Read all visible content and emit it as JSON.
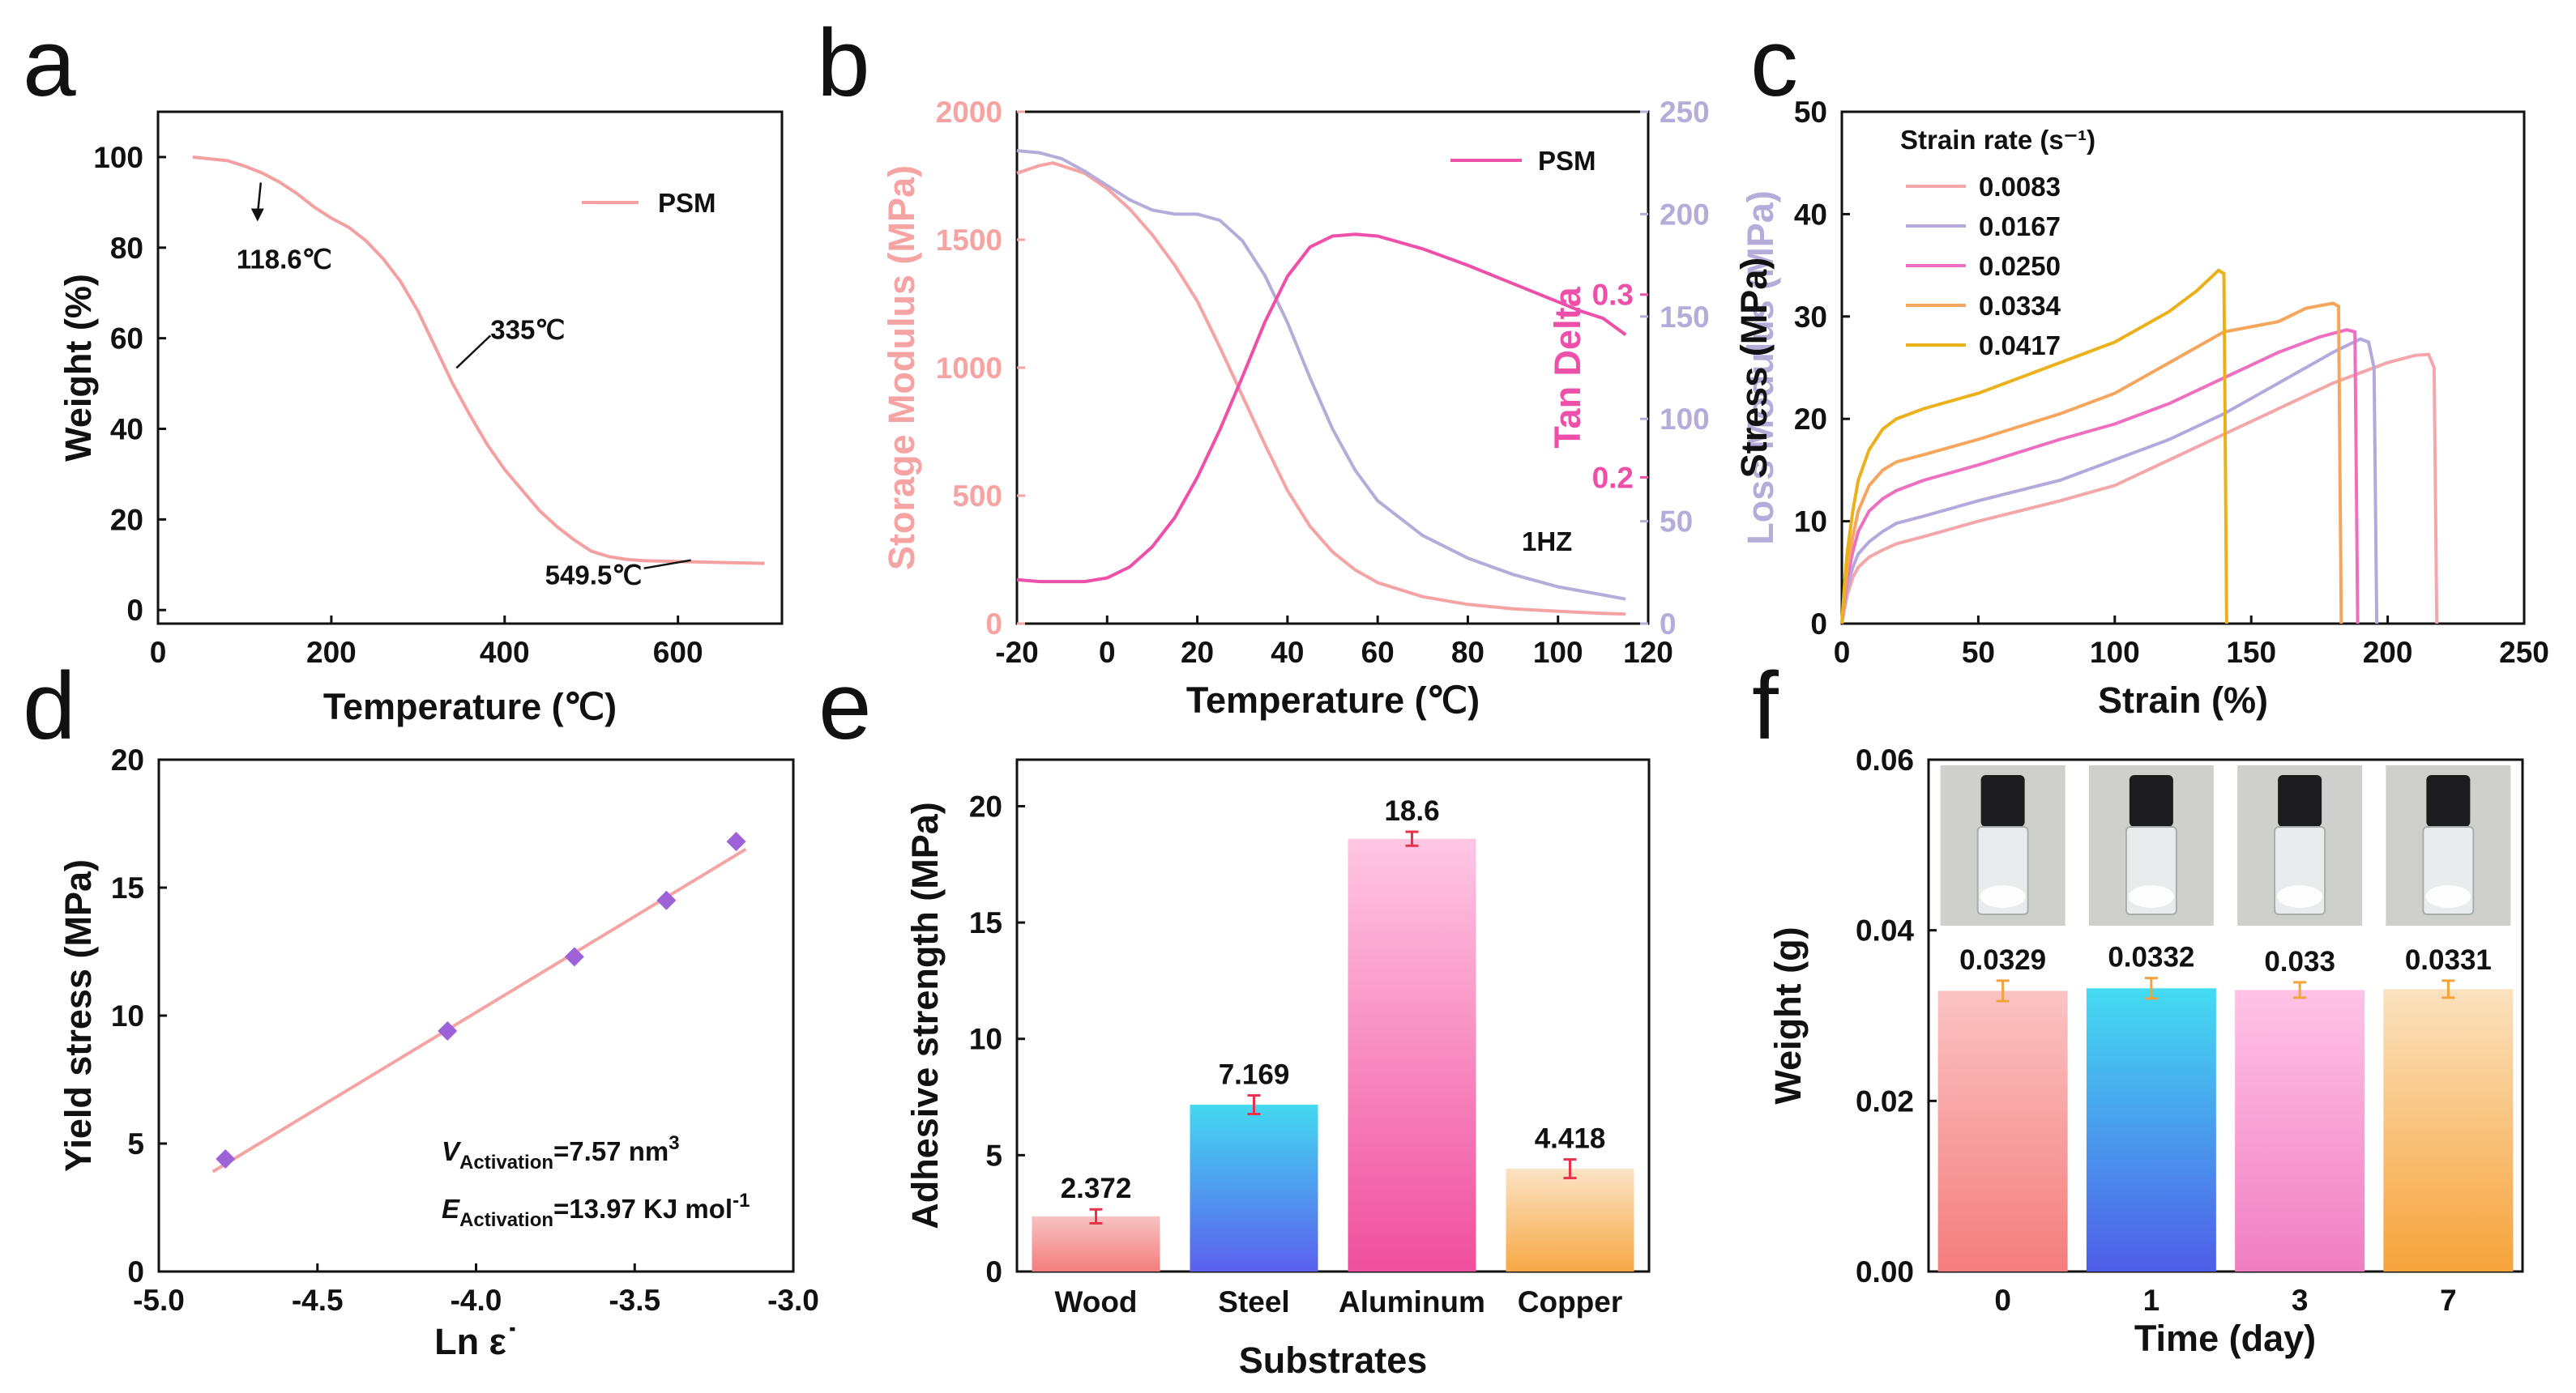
{
  "colors": {
    "tga": "#f4a0a0",
    "storage": "#f6a3a3",
    "tand": "#ee4fa9",
    "loss": "#b6acd9",
    "sr1": "#f4a7aa",
    "sr2": "#b4a8dd",
    "sr3": "#ee6fbf",
    "sr4": "#f5a65c",
    "sr5": "#eab11a",
    "fit": "#f6a3a3",
    "marker": "#9e62d8",
    "errorbar": "#e8324c",
    "errorbar_f": "#f2a43b",
    "grad_wood": [
      "#f7c2c2",
      "#f47d7d"
    ],
    "grad_steel": [
      "#43d9f0",
      "#5b60ee"
    ],
    "grad_aluminum": [
      "#ffc7e3",
      "#f04f9e"
    ],
    "grad_copper": [
      "#fbe3c4",
      "#f7a845"
    ],
    "grad_f0": [
      "#fbc3c3",
      "#f47d7d"
    ],
    "grad_f1": [
      "#44dcf2",
      "#4f5de8"
    ],
    "grad_f3": [
      "#ffc3e6",
      "#f07ec1"
    ],
    "grad_f7": [
      "#fbe2bf",
      "#f6a33a"
    ]
  },
  "panels": {
    "a": {
      "label": "a",
      "chart_data": {
        "type": "line",
        "xlabel": "Temperature (℃)",
        "ylabel": "Weight (%)",
        "xlim": [
          0,
          720
        ],
        "ylim": [
          -3,
          110
        ],
        "xticks": [
          0,
          200,
          400,
          600
        ],
        "yticks": [
          0,
          20,
          40,
          60,
          80,
          100
        ],
        "legend": "PSM",
        "legend_position": "top-right",
        "series": [
          {
            "name": "PSM",
            "x": [
              40,
              80,
              100,
              120,
              140,
              160,
              180,
              200,
              220,
              240,
              260,
              280,
              300,
              320,
              340,
              360,
              380,
              400,
              420,
              440,
              460,
              480,
              500,
              520,
              540,
              560,
              600,
              650,
              700
            ],
            "y": [
              100,
              99.2,
              98,
              96.5,
              94.5,
              92,
              89,
              86.5,
              84.5,
              81.5,
              77.5,
              72.5,
              66,
              58,
              50,
              43,
              36.5,
              31,
              26.5,
              22,
              18.5,
              15.5,
              13,
              11.8,
              11.2,
              10.9,
              10.7,
              10.5,
              10.3
            ]
          }
        ],
        "annotations": [
          {
            "text": "118.6℃",
            "x": 118.6,
            "y": 96.5
          },
          {
            "text": "335℃",
            "x": 335,
            "y": 52
          },
          {
            "text": "549.5℃",
            "x": 549.5,
            "y": 11
          }
        ]
      }
    },
    "b": {
      "label": "b",
      "chart_data": {
        "type": "line",
        "xlabel": "Temperature (℃)",
        "xlim": [
          -20,
          120
        ],
        "xticks": [
          -20,
          0,
          20,
          40,
          60,
          80,
          100,
          120
        ],
        "left_axis": {
          "label": "Storage Modulus (MPa)",
          "lim": [
            0,
            2000
          ],
          "ticks": [
            0,
            500,
            1000,
            1500,
            2000
          ]
        },
        "right_axis1": {
          "label": "Loss Modulus (MPa)",
          "lim": [
            0,
            250
          ],
          "ticks": [
            0,
            50,
            100,
            150,
            200,
            250
          ]
        },
        "inner_axis": {
          "label": "Tan Delta",
          "lim": [
            0.12,
            0.4
          ],
          "ticks": [
            0.2,
            0.3
          ],
          "tick_labels": [
            "0.2",
            "0.3"
          ]
        },
        "legend": "PSM",
        "legend_position": "top-right",
        "annotation": "1HZ",
        "series": [
          {
            "name": "Storage Modulus",
            "x": [
              -20,
              -15,
              -12,
              -5,
              0,
              5,
              10,
              15,
              20,
              25,
              30,
              35,
              40,
              45,
              50,
              55,
              60,
              70,
              80,
              90,
              100,
              110,
              115
            ],
            "y": [
              1760,
              1790,
              1800,
              1760,
              1700,
              1620,
              1520,
              1400,
              1260,
              1080,
              890,
              700,
              520,
              380,
              280,
              210,
              160,
              105,
              75,
              58,
              48,
              40,
              37
            ]
          },
          {
            "name": "Loss Modulus",
            "x": [
              -20,
              -15,
              -10,
              -5,
              0,
              5,
              10,
              15,
              20,
              25,
              30,
              35,
              40,
              45,
              50,
              55,
              60,
              70,
              80,
              90,
              100,
              110,
              115
            ],
            "y": [
              231,
              230,
              227,
              221,
              214,
              207,
              202,
              200,
              200,
              197,
              187,
              170,
              147,
              120,
              95,
              75,
              60,
              43,
              32,
              24,
              18,
              14,
              12
            ]
          },
          {
            "name": "Tan Delta",
            "x": [
              -20,
              -15,
              -10,
              -5,
              0,
              5,
              10,
              15,
              20,
              25,
              30,
              35,
              40,
              45,
              50,
              55,
              60,
              70,
              80,
              90,
              100,
              105,
              110,
              115
            ],
            "y": [
              0.144,
              0.143,
              0.143,
              0.143,
              0.145,
              0.151,
              0.162,
              0.178,
              0.2,
              0.226,
              0.255,
              0.285,
              0.31,
              0.326,
              0.332,
              0.333,
              0.332,
              0.325,
              0.316,
              0.306,
              0.296,
              0.291,
              0.287,
              0.278
            ]
          }
        ]
      }
    },
    "c": {
      "label": "c",
      "chart_data": {
        "type": "line",
        "xlabel": "Strain (%)",
        "ylabel": "Stress (MPa)",
        "xlim": [
          0,
          250
        ],
        "ylim": [
          0,
          50
        ],
        "xticks": [
          0,
          50,
          100,
          150,
          200,
          250
        ],
        "yticks": [
          0,
          10,
          20,
          30,
          40,
          50
        ],
        "legend_title": "Strain rate (s⁻¹)",
        "legend_position": "top-left",
        "series": [
          {
            "name": "0.0083",
            "x": [
              0,
              1,
              2,
              4,
              6,
              10,
              15,
              20,
              30,
              50,
              80,
              100,
              120,
              140,
              160,
              180,
              200,
              210,
              215,
              217,
              218
            ],
            "y": [
              0,
              1.5,
              2.8,
              4.5,
              5.5,
              6.5,
              7.2,
              7.8,
              8.5,
              10,
              12,
              13.5,
              16,
              18.5,
              21,
              23.5,
              25.5,
              26.2,
              26.3,
              25,
              0
            ]
          },
          {
            "name": "0.0167",
            "x": [
              0,
              1,
              2,
              4,
              6,
              10,
              15,
              20,
              30,
              50,
              80,
              100,
              120,
              140,
              160,
              180,
              190,
              193,
              195,
              196
            ],
            "y": [
              0,
              2,
              3.5,
              5.5,
              6.8,
              8,
              9,
              9.8,
              10.5,
              12,
              14,
              16,
              18,
              20.5,
              23.5,
              26.5,
              27.8,
              27.5,
              25,
              0
            ]
          },
          {
            "name": "0.0250",
            "x": [
              0,
              1,
              2,
              4,
              6,
              10,
              15,
              20,
              30,
              50,
              80,
              100,
              120,
              140,
              160,
              175,
              185,
              188,
              189
            ],
            "y": [
              0,
              2.5,
              4.5,
              7,
              9,
              11,
              12.2,
              13,
              14,
              15.5,
              18,
              19.5,
              21.5,
              24,
              26.5,
              28,
              28.7,
              28.5,
              0
            ]
          },
          {
            "name": "0.0334",
            "x": [
              0,
              1,
              2,
              4,
              6,
              10,
              15,
              20,
              30,
              50,
              80,
              100,
              120,
              140,
              160,
              170,
              180,
              182,
              183
            ],
            "y": [
              0,
              3,
              5.5,
              8.5,
              11,
              13.5,
              15,
              15.8,
              16.5,
              18,
              20.5,
              22.5,
              25.5,
              28.5,
              29.5,
              30.8,
              31.3,
              31,
              0
            ]
          },
          {
            "name": "0.0417",
            "x": [
              0,
              1,
              2,
              4,
              6,
              10,
              15,
              20,
              30,
              50,
              80,
              100,
              120,
              130,
              138,
              140,
              141
            ],
            "y": [
              0,
              4,
              7,
              11,
              14,
              17,
              19,
              20,
              21,
              22.5,
              25.5,
              27.5,
              30.5,
              32.5,
              34.5,
              34.2,
              0
            ]
          }
        ]
      }
    },
    "d": {
      "label": "d",
      "chart_data": {
        "type": "scatter",
        "xlabel": "Ln ε˙",
        "ylabel": "Yield stress (MPa)",
        "xlim": [
          -5.0,
          -3.0
        ],
        "ylim": [
          0,
          20
        ],
        "xticks": [
          -5.0,
          -4.5,
          -4.0,
          -3.5,
          -3.0
        ],
        "xtick_labels": [
          "-5.0",
          "-4.5",
          "-4.0",
          "-3.5",
          "-3.0"
        ],
        "yticks": [
          0,
          5,
          10,
          15,
          20
        ],
        "points": [
          {
            "x": -4.79,
            "y": 4.4
          },
          {
            "x": -4.09,
            "y": 9.4
          },
          {
            "x": -3.69,
            "y": 12.3
          },
          {
            "x": -3.4,
            "y": 14.5
          },
          {
            "x": -3.18,
            "y": 16.8
          }
        ],
        "fit": {
          "x": [
            -4.83,
            -3.15
          ],
          "y": [
            3.9,
            16.5
          ]
        },
        "annotations": {
          "v_sym": "V",
          "v_sub": "Activation",
          "v_val": "=7.57 nm",
          "v_sup": "3",
          "e_sym": "E",
          "e_sub": "Activation",
          "e_val": "=13.97 KJ mol",
          "e_sup": "-1"
        }
      }
    },
    "e": {
      "label": "e",
      "chart_data": {
        "type": "bar",
        "xlabel": "Substrates",
        "ylabel": "Adhesive strength (MPa)",
        "ylim": [
          0,
          22
        ],
        "yticks": [
          0,
          5,
          10,
          15,
          20
        ],
        "categories": [
          "Wood",
          "Steel",
          "Aluminum",
          "Copper"
        ],
        "values": [
          2.372,
          7.169,
          18.6,
          4.418
        ],
        "value_labels": [
          "2.372",
          "7.169",
          "18.6",
          "4.418"
        ],
        "errors": [
          0.3,
          0.4,
          0.3,
          0.4
        ]
      }
    },
    "f": {
      "label": "f",
      "chart_data": {
        "type": "bar",
        "xlabel": "Time (day)",
        "ylabel": "Weight (g)",
        "ylim": [
          0,
          0.06
        ],
        "yticks": [
          0,
          0.02,
          0.04,
          0.06
        ],
        "ytick_labels": [
          "0.00",
          "0.02",
          "0.04",
          "0.06"
        ],
        "categories": [
          "0",
          "1",
          "3",
          "7"
        ],
        "values": [
          0.0329,
          0.0332,
          0.033,
          0.0331
        ],
        "value_labels": [
          "0.0329",
          "0.0332",
          "0.033",
          "0.0331"
        ],
        "errors": [
          0.0012,
          0.0012,
          0.0009,
          0.001
        ]
      }
    }
  }
}
